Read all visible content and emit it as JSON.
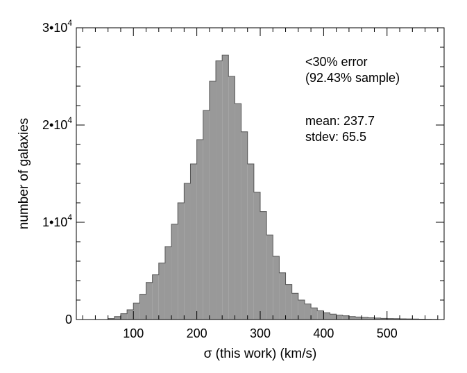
{
  "chart_data": {
    "type": "bar",
    "title": "",
    "xlabel": "σ (this work) (km/s)",
    "ylabel": "number of galaxies",
    "xlim": [
      10,
      590
    ],
    "ylim": [
      0,
      30000
    ],
    "grid": false,
    "bar_color": "#999999",
    "bin_width": 10,
    "x_ticks": [
      {
        "value": 100,
        "label": "100"
      },
      {
        "value": 200,
        "label": "200"
      },
      {
        "value": 300,
        "label": "300"
      },
      {
        "value": 400,
        "label": "400"
      },
      {
        "value": 500,
        "label": "500"
      }
    ],
    "y_ticks": [
      {
        "value": 0,
        "mantissa": "0",
        "exponent": ""
      },
      {
        "value": 10000,
        "mantissa": "1•10",
        "exponent": "4"
      },
      {
        "value": 20000,
        "mantissa": "2•10",
        "exponent": "4"
      },
      {
        "value": 30000,
        "mantissa": "3•10",
        "exponent": "4"
      }
    ],
    "bin_starts": [
      60,
      70,
      80,
      90,
      100,
      110,
      120,
      130,
      140,
      150,
      160,
      170,
      180,
      190,
      200,
      210,
      220,
      230,
      240,
      250,
      260,
      270,
      280,
      290,
      300,
      310,
      320,
      330,
      340,
      350,
      360,
      370,
      380,
      390,
      400,
      410,
      420,
      430,
      440,
      450,
      460,
      470,
      480,
      490,
      500,
      510,
      520,
      530,
      540,
      550,
      560,
      570
    ],
    "values": [
      100,
      300,
      600,
      1000,
      1700,
      2600,
      3800,
      4600,
      5800,
      7500,
      9800,
      12000,
      14000,
      16000,
      18500,
      21500,
      24500,
      26600,
      27200,
      25000,
      22200,
      19300,
      16000,
      13100,
      11100,
      8700,
      6500,
      4800,
      3600,
      2700,
      2000,
      1600,
      1200,
      900,
      700,
      550,
      450,
      380,
      300,
      260,
      220,
      180,
      150,
      120,
      100,
      90,
      70,
      60,
      50,
      40,
      30,
      20
    ]
  },
  "annotations": {
    "line1": "<30% error",
    "line2": "(92.43% sample)",
    "line3": "mean: 237.7",
    "line4": "stdev: 65.5"
  }
}
